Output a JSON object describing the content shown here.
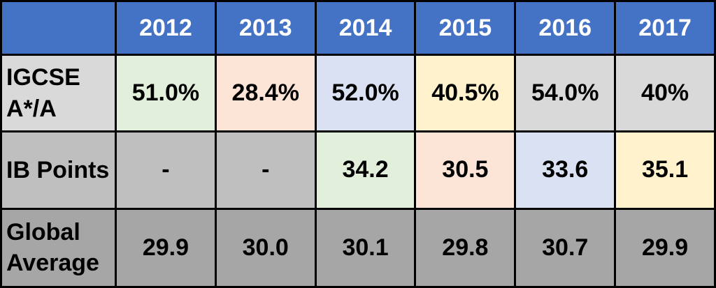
{
  "table": {
    "columns": [
      "2012",
      "2013",
      "2014",
      "2015",
      "2016",
      "2017"
    ],
    "rows": [
      {
        "label": "IGCSE A*/A",
        "values": [
          "51.0%",
          "28.4%",
          "52.0%",
          "40.5%",
          "54.0%",
          "40%"
        ]
      },
      {
        "label": "IB Points",
        "values": [
          "-",
          "-",
          "34.2",
          "30.5",
          "33.6",
          "35.1"
        ]
      },
      {
        "label": "Global Average",
        "values": [
          "29.9",
          "30.0",
          "30.1",
          "29.8",
          "30.7",
          "29.9"
        ]
      }
    ]
  }
}
